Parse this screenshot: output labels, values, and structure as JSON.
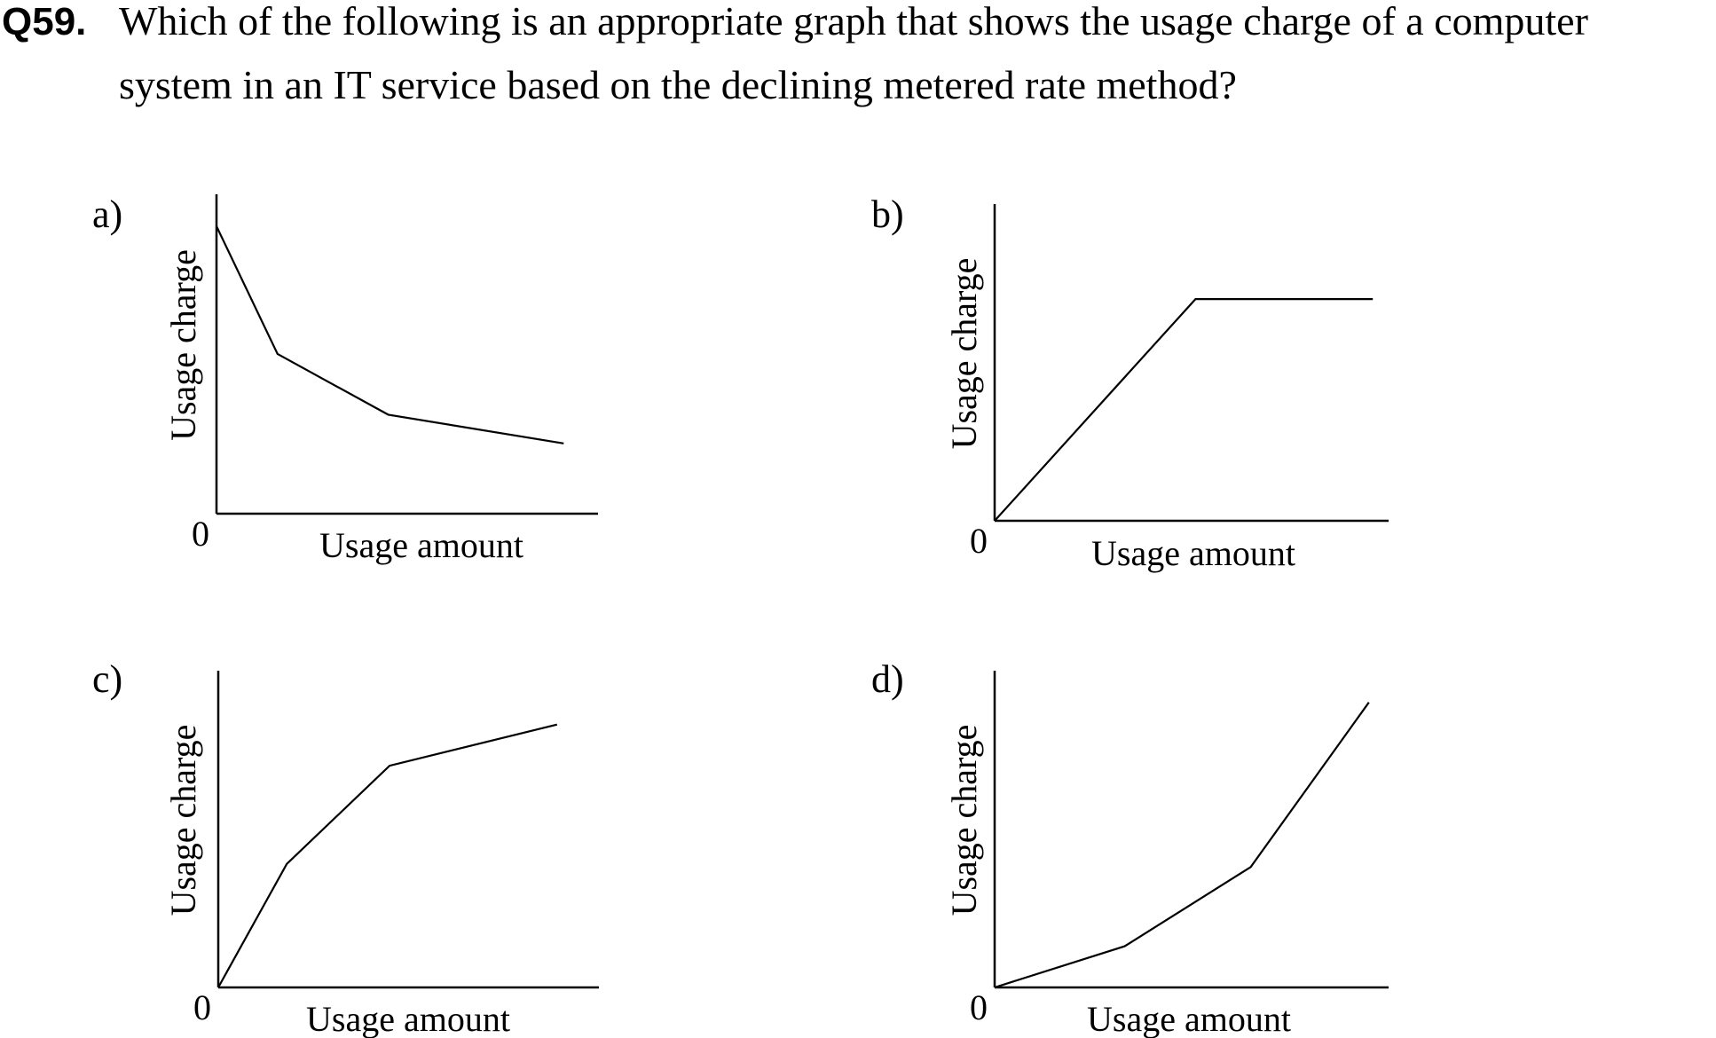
{
  "question": {
    "number": "Q59.",
    "line1": "Which of the following is an appropriate graph that shows the usage charge of a computer",
    "line2": "system in an IT service based on the declining metered rate method?"
  },
  "options": [
    {
      "letter": "a)",
      "xlabel": "Usage amount",
      "ylabel": "Usage charge",
      "origin_label": "0"
    },
    {
      "letter": "b)",
      "xlabel": "Usage amount",
      "ylabel": "Usage charge",
      "origin_label": "0"
    },
    {
      "letter": "c)",
      "xlabel": "Usage amount",
      "ylabel": "Usage charge",
      "origin_label": "0"
    },
    {
      "letter": "d)",
      "xlabel": "Usage amount",
      "ylabel": "Usage charge",
      "origin_label": "0"
    }
  ],
  "chart_data": [
    {
      "type": "line",
      "xlabel": "Usage amount",
      "ylabel": "Usage charge",
      "xlim": [
        0,
        100
      ],
      "ylim": [
        0,
        100
      ],
      "series": [
        {
          "x": [
            0,
            16,
            45,
            91
          ],
          "y": [
            90,
            50,
            31,
            22
          ]
        }
      ]
    },
    {
      "type": "line",
      "xlabel": "Usage amount",
      "ylabel": "Usage charge",
      "xlim": [
        0,
        100
      ],
      "ylim": [
        0,
        100
      ],
      "series": [
        {
          "x": [
            0,
            51,
            96
          ],
          "y": [
            0,
            70,
            70
          ]
        }
      ]
    },
    {
      "type": "line",
      "xlabel": "Usage amount",
      "ylabel": "Usage charge",
      "xlim": [
        0,
        100
      ],
      "ylim": [
        0,
        100
      ],
      "series": [
        {
          "x": [
            0,
            18,
            45,
            89
          ],
          "y": [
            0,
            39,
            70,
            83
          ]
        }
      ]
    },
    {
      "type": "line",
      "xlabel": "Usage amount",
      "ylabel": "Usage charge",
      "xlim": [
        0,
        100
      ],
      "ylim": [
        0,
        100
      ],
      "series": [
        {
          "x": [
            0,
            33,
            65,
            95
          ],
          "y": [
            0,
            13,
            38,
            90
          ]
        }
      ]
    }
  ]
}
